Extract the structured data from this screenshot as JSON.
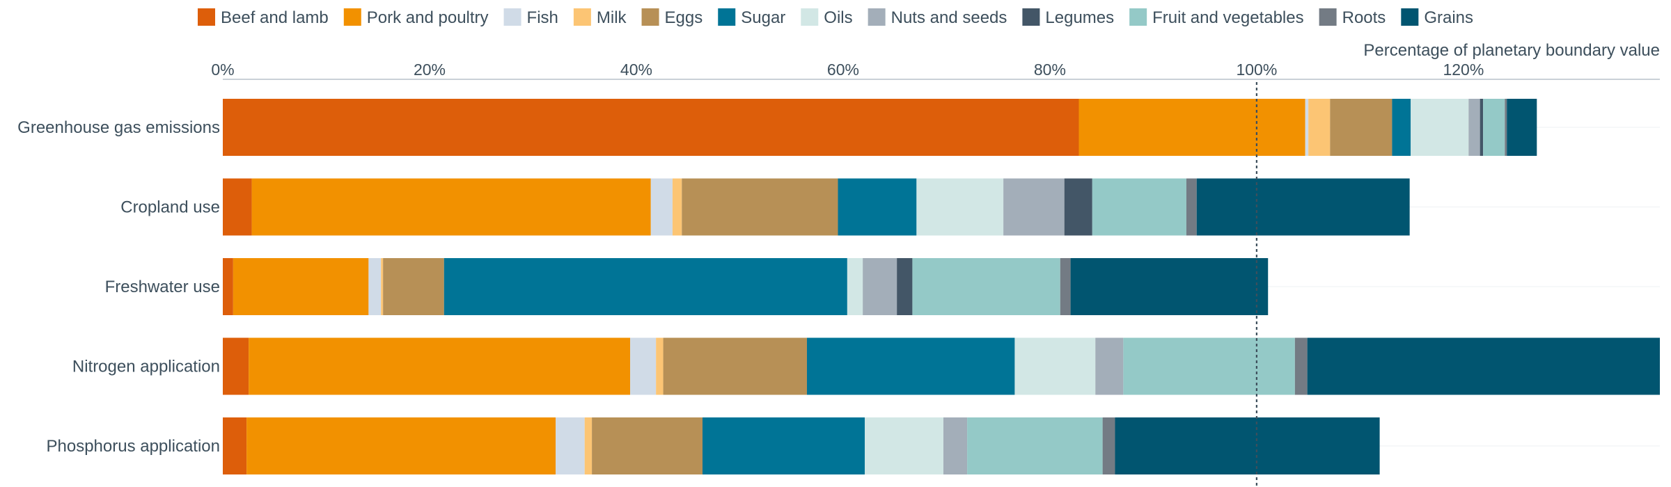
{
  "chart_data": {
    "type": "bar",
    "orientation": "horizontal",
    "stacked": true,
    "xlabel": "Percentage of planetary boundary value",
    "x_unit": "%",
    "xlim": [
      0,
      139
    ],
    "x_ticks": [
      0,
      20,
      40,
      60,
      80,
      100,
      120
    ],
    "tick_labels": [
      "0%",
      "20%",
      "40%",
      "60%",
      "80%",
      "100%",
      "120%"
    ],
    "reference_line": 100,
    "legend_position": "top",
    "categories": [
      "Greenhouse gas emissions",
      "Cropland use",
      "Freshwater use",
      "Nitrogen application",
      "Phosphorus application"
    ],
    "series": [
      {
        "name": "Beef and lamb",
        "color": "#dd5e0a",
        "values": [
          82.8,
          2.8,
          1.0,
          2.5,
          2.3
        ]
      },
      {
        "name": "Pork and poultry",
        "color": "#f29100",
        "values": [
          21.9,
          38.6,
          13.1,
          36.9,
          29.9
        ]
      },
      {
        "name": "Fish",
        "color": "#d0dbe7",
        "values": [
          0.3,
          2.1,
          1.2,
          2.5,
          2.8
        ]
      },
      {
        "name": "Milk",
        "color": "#fcc574",
        "values": [
          2.1,
          0.9,
          0.2,
          0.7,
          0.7
        ]
      },
      {
        "name": "Eggs",
        "color": "#b79056",
        "values": [
          6.0,
          15.1,
          5.9,
          13.9,
          10.7
        ]
      },
      {
        "name": "Sugar",
        "color": "#007496",
        "values": [
          1.8,
          7.6,
          39.0,
          20.1,
          15.7
        ]
      },
      {
        "name": "Oils",
        "color": "#d2e7e5",
        "values": [
          5.6,
          8.4,
          1.5,
          7.8,
          7.6
        ]
      },
      {
        "name": "Nuts and seeds",
        "color": "#a3aeb9",
        "values": [
          1.1,
          5.9,
          3.3,
          2.7,
          2.3
        ]
      },
      {
        "name": "Legumes",
        "color": "#435667",
        "values": [
          0.3,
          2.7,
          1.5,
          0.0,
          0.0
        ]
      },
      {
        "name": "Fruit and vegetables",
        "color": "#94c9c7",
        "values": [
          2.1,
          9.1,
          14.3,
          16.6,
          13.1
        ]
      },
      {
        "name": "Roots",
        "color": "#737b84",
        "values": [
          0.2,
          1.0,
          1.0,
          1.2,
          1.2
        ]
      },
      {
        "name": "Grains",
        "color": "#015570",
        "values": [
          2.9,
          20.6,
          19.1,
          34.1,
          25.6
        ]
      }
    ]
  }
}
